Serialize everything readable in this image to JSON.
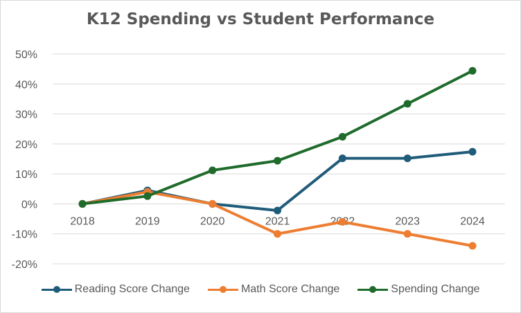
{
  "chart_data": {
    "type": "line",
    "title": "K12 Spending vs Student Performance",
    "xlabel": "",
    "ylabel": "",
    "categories": [
      "2018",
      "2019",
      "2020",
      "2021",
      "2022",
      "2023",
      "2024"
    ],
    "ylim": [
      -0.2,
      0.5
    ],
    "y_ticks": [
      0.5,
      0.4,
      0.3,
      0.2,
      0.1,
      0.0,
      -0.1,
      -0.2
    ],
    "y_tick_labels": [
      "50%",
      "40%",
      "30%",
      "20%",
      "10%",
      "0%",
      "-10%",
      "-20%"
    ],
    "grid": true,
    "legend_position": "bottom",
    "series": [
      {
        "name": "Reading Score Change",
        "color": "#1f5c7a",
        "values": [
          0.0,
          0.045,
          0.0,
          -0.022,
          0.152,
          0.152,
          0.174
        ]
      },
      {
        "name": "Math Score Change",
        "color": "#ed7d31",
        "values": [
          0.0,
          0.04,
          0.0,
          -0.1,
          -0.06,
          -0.1,
          -0.14
        ]
      },
      {
        "name": "Spending Change",
        "color": "#1e6b2b",
        "values": [
          0.0,
          0.026,
          0.112,
          0.144,
          0.224,
          0.334,
          0.444
        ]
      }
    ]
  }
}
